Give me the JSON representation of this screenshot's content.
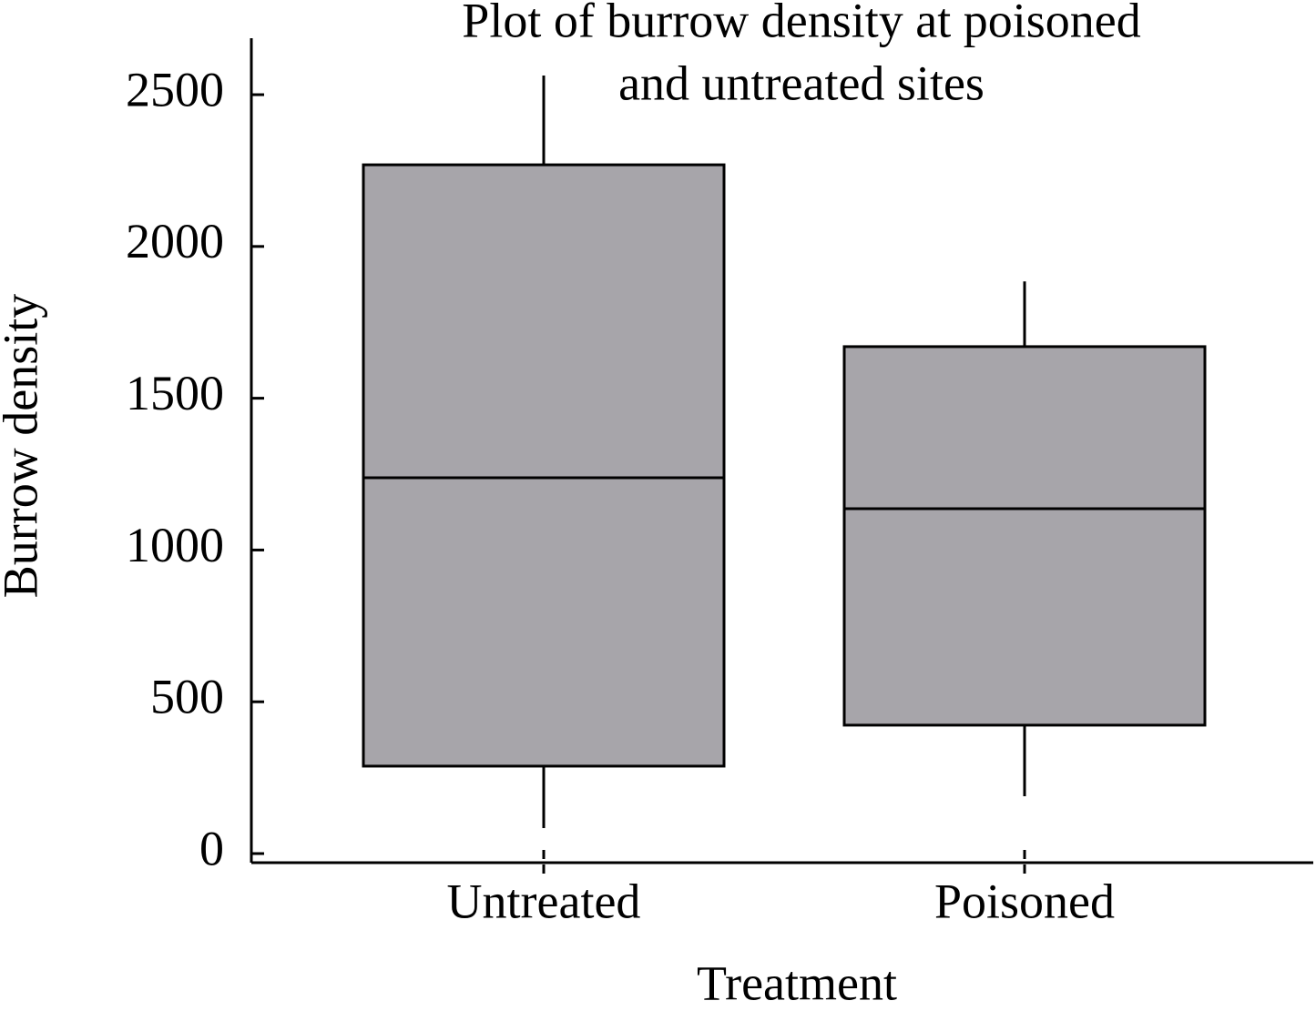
{
  "chart_data": {
    "type": "box",
    "title": "Plot of burrow density at poisoned and untreated sites",
    "title_lines": [
      "Plot of burrow density at poisoned",
      "and untreated sites"
    ],
    "x_label": "Treatment",
    "y_label": "Burrow density",
    "categories": [
      "Untreated",
      "Poisoned"
    ],
    "values": [
      {
        "whisker_low": 84,
        "q1": 288,
        "median": 1238,
        "q3": 2269,
        "whisker_high": 2563
      },
      {
        "whisker_low": 189,
        "q1": 423,
        "median": 1136,
        "q3": 1670,
        "whisker_high": 1885
      }
    ],
    "color": "#a7a5aa",
    "ylim": [
      -30,
      2686
    ],
    "yticks": [
      0,
      500,
      1000,
      1500,
      2000,
      2500
    ]
  }
}
